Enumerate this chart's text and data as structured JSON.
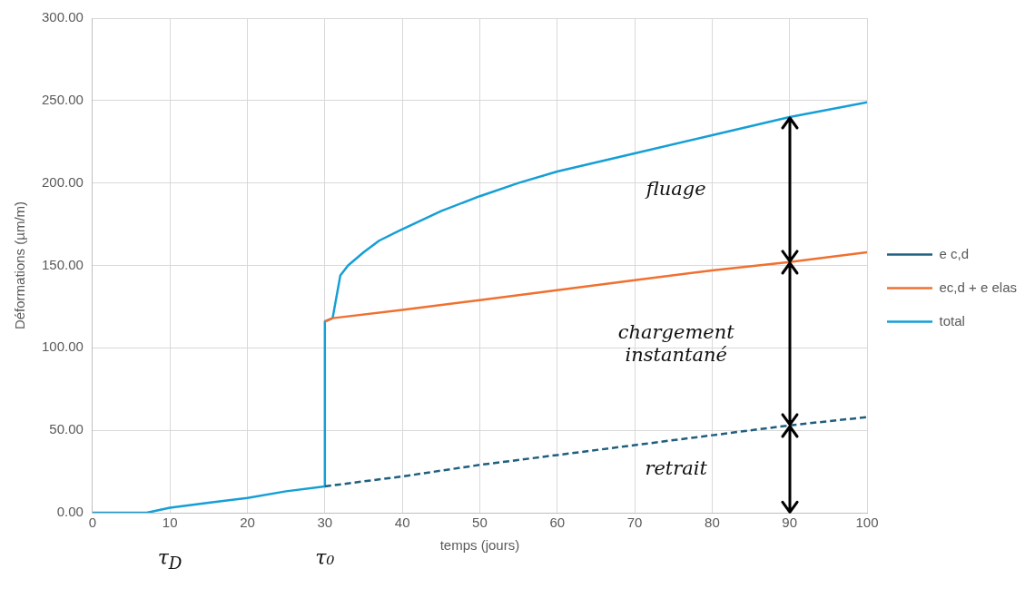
{
  "chart_data": {
    "type": "line",
    "xlabel": "temps (jours)",
    "ylabel": "Déformations (µm/m)",
    "xlim": [
      0,
      100
    ],
    "xticks": [
      0,
      10,
      20,
      30,
      40,
      50,
      60,
      70,
      80,
      90,
      100
    ],
    "ylim": [
      0,
      300
    ],
    "yticks": [
      {
        "value": 0,
        "label": "0.00"
      },
      {
        "value": 50,
        "label": "50.00"
      },
      {
        "value": 100,
        "label": "100.00"
      },
      {
        "value": 150,
        "label": "150.00"
      },
      {
        "value": 200,
        "label": "200.00"
      },
      {
        "value": 250,
        "label": "250.00"
      },
      {
        "value": 300,
        "label": "300.00"
      }
    ],
    "grid": true,
    "legend": "right",
    "marker": "none",
    "series": [
      {
        "name": "e c,d",
        "color": "#1f5f7f",
        "line_style": "dashed",
        "x": [
          30,
          40,
          50,
          60,
          70,
          80,
          90,
          100
        ],
        "values": [
          16,
          22,
          29,
          35,
          41,
          47,
          53,
          58
        ]
      },
      {
        "name": "ec,d + e elas",
        "color": "#f07030",
        "x": [
          30,
          31,
          40,
          50,
          60,
          70,
          80,
          90,
          100
        ],
        "values": [
          116,
          118,
          123,
          129,
          135,
          141,
          147,
          152,
          158
        ]
      },
      {
        "name": "total",
        "color": "#159fd6",
        "x": [
          0,
          7,
          10,
          15,
          20,
          25,
          30,
          30,
          31,
          32,
          33,
          35,
          37,
          40,
          45,
          50,
          55,
          60,
          70,
          80,
          90,
          100
        ],
        "values": [
          0,
          0,
          3,
          6,
          9,
          13,
          16,
          116,
          118,
          144,
          150,
          158,
          165,
          172,
          183,
          192,
          200,
          207,
          218,
          229,
          240,
          249
        ]
      }
    ],
    "annotations": [
      "fluage",
      "chargement instantané",
      "retrait",
      "τ$_{D}$",
      "τ₀"
    ]
  }
}
